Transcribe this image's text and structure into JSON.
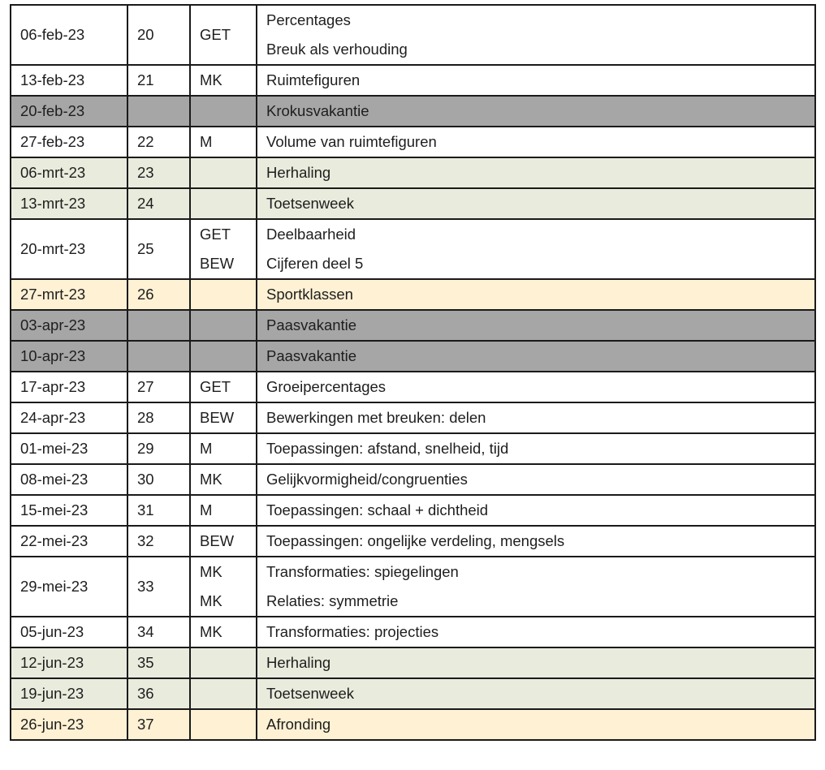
{
  "colors": {
    "vakantie": "#a6a6a6",
    "herhaling": "#e9ecdd",
    "sport": "#fff1d4"
  },
  "rows": [
    {
      "date": "06-feb-23",
      "week": "20",
      "codes": [
        "GET",
        ""
      ],
      "topics": [
        "Percentages",
        "Breuk als verhouding"
      ],
      "type": "normal"
    },
    {
      "date": "13-feb-23",
      "week": "21",
      "codes": [
        "MK"
      ],
      "topics": [
        "Ruimtefiguren"
      ],
      "type": "normal"
    },
    {
      "date": "20-feb-23",
      "week": "",
      "codes": [
        ""
      ],
      "topics": [
        "Krokusvakantie"
      ],
      "type": "vak"
    },
    {
      "date": "27-feb-23",
      "week": "22",
      "codes": [
        "M"
      ],
      "topics": [
        "Volume van ruimtefiguren"
      ],
      "type": "normal"
    },
    {
      "date": "06-mrt-23",
      "week": "23",
      "codes": [
        ""
      ],
      "topics": [
        "Herhaling"
      ],
      "type": "herh"
    },
    {
      "date": "13-mrt-23",
      "week": "24",
      "codes": [
        ""
      ],
      "topics": [
        "Toetsenweek"
      ],
      "type": "herh"
    },
    {
      "date": "20-mrt-23",
      "week": "25",
      "codes": [
        "GET",
        "BEW"
      ],
      "topics": [
        "Deelbaarheid",
        "Cijferen deel 5"
      ],
      "type": "normal"
    },
    {
      "date": "27-mrt-23",
      "week": "26",
      "codes": [
        ""
      ],
      "topics": [
        "Sportklassen"
      ],
      "type": "sport"
    },
    {
      "date": "03-apr-23",
      "week": "",
      "codes": [
        ""
      ],
      "topics": [
        "Paasvakantie"
      ],
      "type": "vak"
    },
    {
      "date": "10-apr-23",
      "week": "",
      "codes": [
        ""
      ],
      "topics": [
        "Paasvakantie"
      ],
      "type": "vak"
    },
    {
      "date": "17-apr-23",
      "week": "27",
      "codes": [
        "GET"
      ],
      "topics": [
        "Groeipercentages"
      ],
      "type": "normal"
    },
    {
      "date": "24-apr-23",
      "week": "28",
      "codes": [
        "BEW"
      ],
      "topics": [
        "Bewerkingen met breuken: delen"
      ],
      "type": "normal"
    },
    {
      "date": "01-mei-23",
      "week": "29",
      "codes": [
        "M"
      ],
      "topics": [
        "Toepassingen: afstand, snelheid, tijd"
      ],
      "type": "normal"
    },
    {
      "date": "08-mei-23",
      "week": "30",
      "codes": [
        "MK"
      ],
      "topics": [
        "Gelijkvormigheid/congruenties"
      ],
      "type": "normal"
    },
    {
      "date": "15-mei-23",
      "week": "31",
      "codes": [
        "M"
      ],
      "topics": [
        "Toepassingen: schaal + dichtheid"
      ],
      "type": "normal"
    },
    {
      "date": "22-mei-23",
      "week": "32",
      "codes": [
        "BEW"
      ],
      "topics": [
        "Toepassingen: ongelijke verdeling, mengsels"
      ],
      "type": "normal"
    },
    {
      "date": "29-mei-23",
      "week": "33",
      "codes": [
        "MK",
        "MK"
      ],
      "topics": [
        "Transformaties: spiegelingen",
        "Relaties: symmetrie"
      ],
      "type": "normal"
    },
    {
      "date": "05-jun-23",
      "week": "34",
      "codes": [
        "MK"
      ],
      "topics": [
        "Transformaties: projecties"
      ],
      "type": "normal"
    },
    {
      "date": "12-jun-23",
      "week": "35",
      "codes": [
        ""
      ],
      "topics": [
        "Herhaling"
      ],
      "type": "herh"
    },
    {
      "date": "19-jun-23",
      "week": "36",
      "codes": [
        ""
      ],
      "topics": [
        "Toetsenweek"
      ],
      "type": "herh"
    },
    {
      "date": "26-jun-23",
      "week": "37",
      "codes": [
        ""
      ],
      "topics": [
        "Afronding"
      ],
      "type": "sport"
    }
  ]
}
